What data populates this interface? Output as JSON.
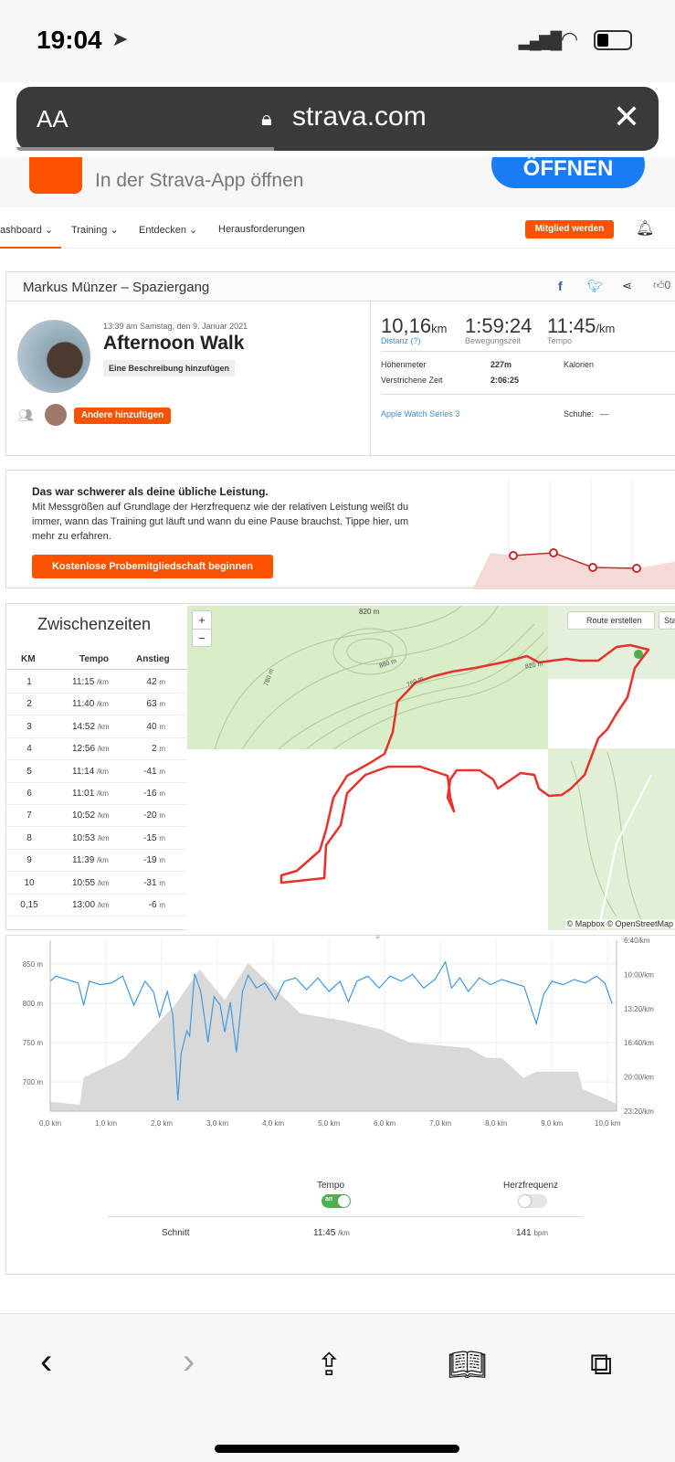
{
  "status": {
    "time": "19:04"
  },
  "browser": {
    "aa": "AA",
    "url": "strava.com",
    "close": "✕"
  },
  "banner": {
    "text": "In der Strava-App öffnen",
    "button": "ÖFFNEN"
  },
  "nav": {
    "items": [
      "ashboard",
      "Training",
      "Entdecken",
      "Herausforderungen"
    ],
    "join": "Mitglied werden"
  },
  "activity": {
    "header": "Markus Münzer – Spaziergang",
    "date": "13:39 am Samstag, den 9. Januar 2021",
    "title": "Afternoon Walk",
    "add_desc": "Eine Beschreibung hinzufügen",
    "add_others": "Andere hinzufügen",
    "kudos": "0",
    "distance": "10,16",
    "distance_unit": "km",
    "distance_label": "Distanz (?)",
    "moving_time": "1:59:24",
    "moving_label": "Bewegungszeit",
    "pace": "11:45",
    "pace_unit": "/km",
    "pace_label": "Tempo",
    "elev_label": "Höhenmeter",
    "elev": "227m",
    "calories_label": "Kalorien",
    "elapsed_label": "Verstrichene Zeit",
    "elapsed": "2:06:25",
    "device": "Apple Watch Series 3",
    "shoes_label": "Schuhe:",
    "shoes": "—"
  },
  "promo": {
    "title": "Das war schwerer als deine übliche Leistung.",
    "body": "Mit Messgrößen auf Grundlage der Herzfrequenz wie der relativen Leistung weißt du immer, wann das Training gut läuft und wann du eine Pause brauchst. Tippe hier, um mehr zu erfahren.",
    "button": "Kostenlose Probemitgliedschaft beginnen"
  },
  "splits": {
    "title": "Zwischenzeiten",
    "headers": [
      "KM",
      "Tempo",
      "Anstieg"
    ],
    "pace_unit": "/km",
    "elev_unit": "m",
    "rows": [
      [
        "1",
        "11:15",
        "42"
      ],
      [
        "2",
        "11:40",
        "63"
      ],
      [
        "3",
        "14:52",
        "40"
      ],
      [
        "4",
        "12:56",
        "2"
      ],
      [
        "5",
        "11:14",
        "-41"
      ],
      [
        "6",
        "11:01",
        "-16"
      ],
      [
        "7",
        "10:52",
        "-20"
      ],
      [
        "8",
        "10:53",
        "-15"
      ],
      [
        "9",
        "11:39",
        "-19"
      ],
      [
        "10",
        "10:55",
        "-31"
      ],
      [
        "0,15",
        "13:00",
        "-6"
      ]
    ]
  },
  "map": {
    "route_btn": "Route erstellen",
    "start_btn": "Star",
    "attribution": "© Mapbox © OpenStreetMap",
    "zoom_in": "+",
    "zoom_out": "−",
    "contour_labels": [
      "820 m",
      "880 m",
      "780 m",
      "760 m",
      "820 m"
    ]
  },
  "chart_data": {
    "type": "area+line",
    "xlabel": "km",
    "x_ticks": [
      "0,0 km",
      "1,0 km",
      "2,0 km",
      "3,0 km",
      "4,0 km",
      "5,0 km",
      "6,0 km",
      "7,0 km",
      "8,0 km",
      "9,0 km",
      "10,0 km"
    ],
    "y_left_ticks": [
      "850 m",
      "800 m",
      "750 m",
      "700 m"
    ],
    "y_left_range": [
      663,
      880
    ],
    "y_right_ticks": [
      "6:40/km",
      "10:00/km",
      "13:20/km",
      "16:40/km",
      "20:00/km",
      "23:20/km"
    ],
    "y_right_range_seconds": [
      400,
      1400
    ],
    "elevation": {
      "name": "Höhe (m)",
      "points": [
        [
          0,
          675
        ],
        [
          0.53,
          671
        ],
        [
          0.6,
          706
        ],
        [
          1.32,
          730
        ],
        [
          2.23,
          797
        ],
        [
          2.68,
          843
        ],
        [
          3.13,
          804
        ],
        [
          3.55,
          851
        ],
        [
          4.49,
          787
        ],
        [
          5.25,
          778
        ],
        [
          5.92,
          767
        ],
        [
          6.45,
          750
        ],
        [
          7.51,
          743
        ],
        [
          7.81,
          731
        ],
        [
          8.11,
          730
        ],
        [
          8.49,
          705
        ],
        [
          8.72,
          713
        ],
        [
          9.47,
          713
        ],
        [
          9.55,
          691
        ],
        [
          10.08,
          675
        ],
        [
          10.16,
          672
        ]
      ]
    },
    "pace": {
      "name": "Tempo (s/km)",
      "points": [
        [
          0,
          640
        ],
        [
          0.1,
          610
        ],
        [
          0.3,
          630
        ],
        [
          0.5,
          650
        ],
        [
          0.6,
          780
        ],
        [
          0.7,
          640
        ],
        [
          0.9,
          660
        ],
        [
          1.1,
          650
        ],
        [
          1.3,
          610
        ],
        [
          1.5,
          780
        ],
        [
          1.7,
          640
        ],
        [
          1.85,
          700
        ],
        [
          1.96,
          847
        ],
        [
          2.1,
          700
        ],
        [
          2.2,
          840
        ],
        [
          2.29,
          1338
        ],
        [
          2.35,
          1060
        ],
        [
          2.45,
          930
        ],
        [
          2.5,
          960
        ],
        [
          2.59,
          597
        ],
        [
          2.7,
          700
        ],
        [
          2.83,
          997
        ],
        [
          2.94,
          730
        ],
        [
          3.05,
          780
        ],
        [
          3.13,
          938
        ],
        [
          3.23,
          763
        ],
        [
          3.34,
          1055
        ],
        [
          3.45,
          700
        ],
        [
          3.55,
          605
        ],
        [
          3.7,
          680
        ],
        [
          3.85,
          650
        ],
        [
          4.04,
          747
        ],
        [
          4.2,
          640
        ],
        [
          4.4,
          620
        ],
        [
          4.6,
          690
        ],
        [
          4.8,
          620
        ],
        [
          5.0,
          700
        ],
        [
          5.2,
          640
        ],
        [
          5.35,
          760
        ],
        [
          5.5,
          640
        ],
        [
          5.7,
          610
        ],
        [
          5.9,
          680
        ],
        [
          6.1,
          610
        ],
        [
          6.3,
          640
        ],
        [
          6.5,
          600
        ],
        [
          6.7,
          680
        ],
        [
          6.9,
          630
        ],
        [
          7.09,
          527
        ],
        [
          7.2,
          680
        ],
        [
          7.35,
          620
        ],
        [
          7.5,
          700
        ],
        [
          7.7,
          620
        ],
        [
          7.9,
          660
        ],
        [
          8.1,
          630
        ],
        [
          8.3,
          650
        ],
        [
          8.5,
          670
        ],
        [
          8.72,
          888
        ],
        [
          8.85,
          720
        ],
        [
          9.0,
          640
        ],
        [
          9.2,
          660
        ],
        [
          9.4,
          630
        ],
        [
          9.6,
          650
        ],
        [
          9.8,
          610
        ],
        [
          9.95,
          650
        ],
        [
          10.08,
          772
        ]
      ]
    }
  },
  "toggles": {
    "pace_label": "Tempo",
    "pace_state": "an",
    "hr_label": "Herzfrequenz",
    "avg_label": "Schnitt",
    "avg_pace": "11:45",
    "avg_pace_unit": "/km",
    "avg_hr": "141",
    "avg_hr_unit": "bpm"
  },
  "colors": {
    "accent": "#fc5200",
    "pace_line": "#3d9ae0",
    "elev_fill": "#d9d9d9",
    "route": "#e8312a"
  }
}
